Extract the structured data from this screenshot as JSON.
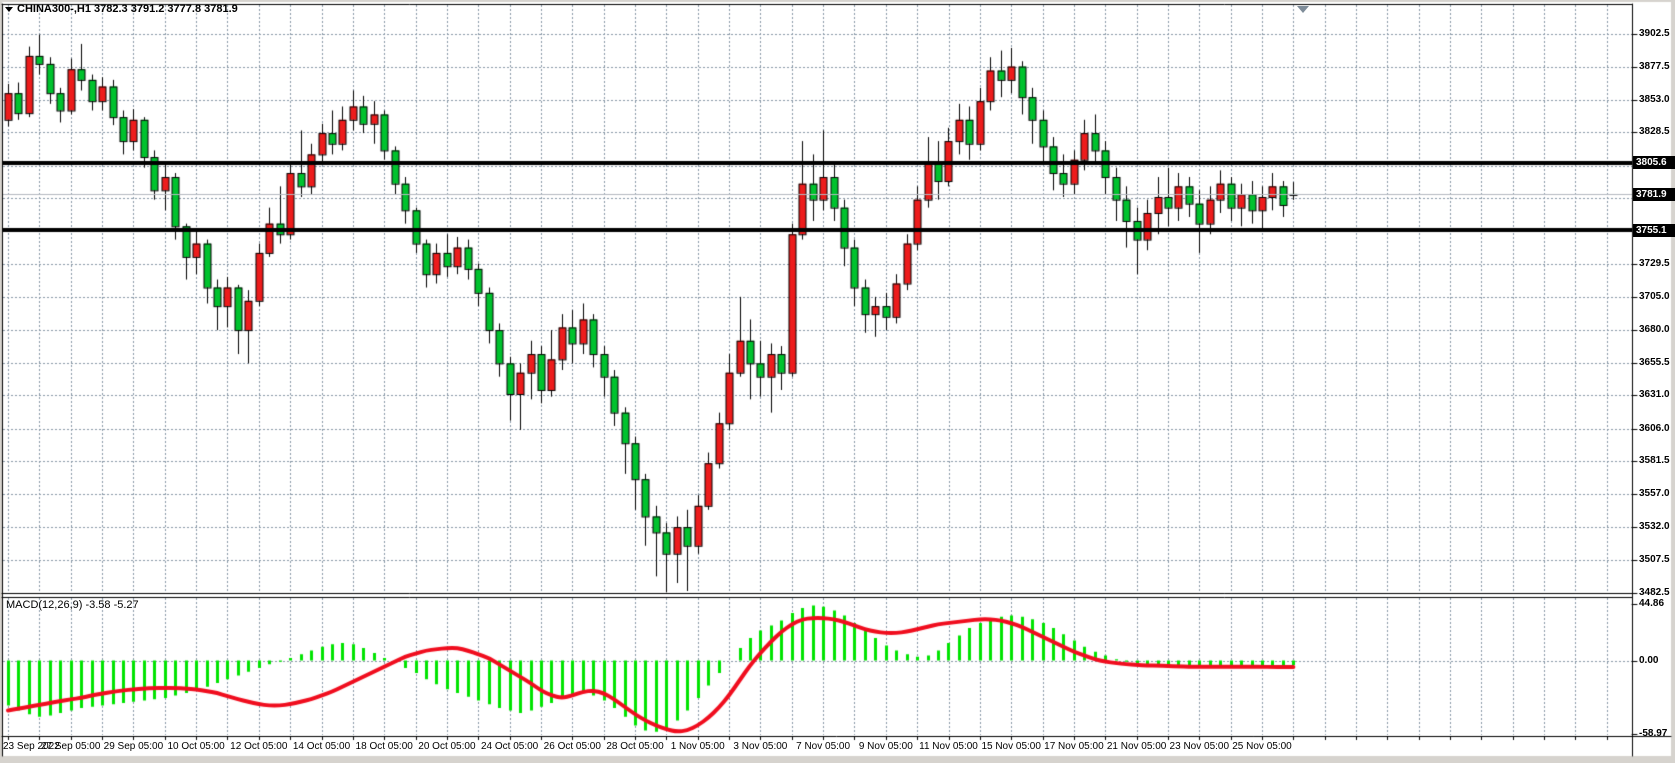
{
  "title": {
    "full": "CHINA300-,H1 3782.3 3791.2 3777.8 3781.9",
    "symbol_period": "CHINA300-,H1",
    "open": "3782.3",
    "high": "3791.2",
    "low": "3777.8",
    "close": "3781.9"
  },
  "macd": {
    "title": "MACD(12,26,9) -3.58 -5.27",
    "axis_labels": [
      {
        "text": "44.86",
        "value": 44.86
      },
      {
        "text": "0.00",
        "value": 0
      },
      {
        "text": "-58.97",
        "value": -58.97
      }
    ]
  },
  "price_axis": {
    "labels": [
      {
        "text": "3902.5",
        "price": 3902.5
      },
      {
        "text": "3877.5",
        "price": 3877.5
      },
      {
        "text": "3853.0",
        "price": 3853.0
      },
      {
        "text": "3828.5",
        "price": 3828.5
      },
      {
        "text": "3729.5",
        "price": 3729.5
      },
      {
        "text": "3705.0",
        "price": 3705.0
      },
      {
        "text": "3680.0",
        "price": 3680.0
      },
      {
        "text": "3655.5",
        "price": 3655.5
      },
      {
        "text": "3631.0",
        "price": 3631.0
      },
      {
        "text": "3606.0",
        "price": 3606.0
      },
      {
        "text": "3581.5",
        "price": 3581.5
      },
      {
        "text": "3557.0",
        "price": 3557.0
      },
      {
        "text": "3532.0",
        "price": 3532.0
      },
      {
        "text": "3507.5",
        "price": 3507.5
      },
      {
        "text": "3482.5",
        "price": 3482.5
      }
    ],
    "badges": [
      {
        "text": "3805.6",
        "price": 3805.6,
        "kind": "horizontal-line"
      },
      {
        "text": "3781.9",
        "price": 3781.9,
        "kind": "bid-price"
      },
      {
        "text": "3755.1",
        "price": 3755.1,
        "kind": "horizontal-line"
      }
    ]
  },
  "time_axis": {
    "labels": [
      {
        "text": "23 Sep 2022",
        "bar": 0
      },
      {
        "text": "27 Sep 05:00",
        "bar": 6
      },
      {
        "text": "29 Sep 05:00",
        "bar": 12
      },
      {
        "text": "10 Oct 05:00",
        "bar": 18
      },
      {
        "text": "12 Oct 05:00",
        "bar": 24
      },
      {
        "text": "14 Oct 05:00",
        "bar": 30
      },
      {
        "text": "18 Oct 05:00",
        "bar": 36
      },
      {
        "text": "20 Oct 05:00",
        "bar": 42
      },
      {
        "text": "24 Oct 05:00",
        "bar": 48
      },
      {
        "text": "26 Oct 05:00",
        "bar": 54
      },
      {
        "text": "28 Oct 05:00",
        "bar": 60
      },
      {
        "text": "1 Nov 05:00",
        "bar": 66
      },
      {
        "text": "3 Nov 05:00",
        "bar": 72
      },
      {
        "text": "7 Nov 05:00",
        "bar": 78
      },
      {
        "text": "9 Nov 05:00",
        "bar": 84
      },
      {
        "text": "11 Nov 05:00",
        "bar": 90
      },
      {
        "text": "15 Nov 05:00",
        "bar": 96
      },
      {
        "text": "17 Nov 05:00",
        "bar": 102
      },
      {
        "text": "21 Nov 05:00",
        "bar": 108
      },
      {
        "text": "23 Nov 05:00",
        "bar": 114
      },
      {
        "text": "25 Nov 05:00",
        "bar": 120
      }
    ]
  },
  "colors": {
    "bull": "#ed1c1c",
    "bear": "#00c22e",
    "candle_border": "#000000",
    "wick": "#000000",
    "macd_hist": "#00e400",
    "macd_signal": "#f00d1e",
    "grid": "#8696a6",
    "bid_line": "#b4b8c0",
    "hline": "#000000",
    "frame": "#d6d3ce",
    "panel": "#ffffff",
    "border": "#000000",
    "badge_bg": "#000000",
    "badge_text": "#ffffff"
  },
  "chart_data": {
    "type": "candlestick",
    "title": "CHINA300-,H1",
    "symbol": "CHINA300-",
    "timeframe": "H1",
    "ylim": [
      3482.5,
      3925.0
    ],
    "grid_prices": [
      3902.5,
      3877.5,
      3853.0,
      3828.5,
      3803.5,
      3779.5,
      3754.5,
      3729.5,
      3705.0,
      3680.0,
      3655.5,
      3631.0,
      3606.0,
      3581.5,
      3557.0,
      3532.0,
      3507.5,
      3482.5
    ],
    "hlines": [
      3805.6,
      3755.1
    ],
    "bid_price": 3781.9,
    "candles": [
      [
        3838,
        3865,
        3833,
        3858
      ],
      [
        3858,
        3866,
        3838,
        3843
      ],
      [
        3843,
        3893,
        3840,
        3886
      ],
      [
        3886,
        3902,
        3872,
        3880
      ],
      [
        3880,
        3885,
        3850,
        3858
      ],
      [
        3858,
        3862,
        3836,
        3845
      ],
      [
        3845,
        3884,
        3842,
        3876
      ],
      [
        3876,
        3895,
        3860,
        3868
      ],
      [
        3868,
        3872,
        3845,
        3852
      ],
      [
        3852,
        3870,
        3845,
        3863
      ],
      [
        3863,
        3868,
        3834,
        3840
      ],
      [
        3840,
        3845,
        3812,
        3822
      ],
      [
        3822,
        3846,
        3815,
        3838
      ],
      [
        3838,
        3840,
        3802,
        3810
      ],
      [
        3810,
        3815,
        3778,
        3785
      ],
      [
        3785,
        3805,
        3770,
        3795
      ],
      [
        3795,
        3798,
        3748,
        3758
      ],
      [
        3758,
        3760,
        3718,
        3735
      ],
      [
        3735,
        3755,
        3722,
        3745
      ],
      [
        3745,
        3748,
        3700,
        3712
      ],
      [
        3712,
        3718,
        3680,
        3698
      ],
      [
        3698,
        3720,
        3682,
        3712
      ],
      [
        3712,
        3714,
        3662,
        3680
      ],
      [
        3680,
        3710,
        3655,
        3702
      ],
      [
        3702,
        3745,
        3698,
        3738
      ],
      [
        3738,
        3772,
        3735,
        3760
      ],
      [
        3760,
        3788,
        3745,
        3752
      ],
      [
        3752,
        3806,
        3748,
        3798
      ],
      [
        3798,
        3830,
        3780,
        3788
      ],
      [
        3788,
        3820,
        3782,
        3812
      ],
      [
        3812,
        3835,
        3806,
        3828
      ],
      [
        3828,
        3845,
        3812,
        3820
      ],
      [
        3820,
        3848,
        3815,
        3838
      ],
      [
        3838,
        3860,
        3830,
        3848
      ],
      [
        3848,
        3856,
        3828,
        3835
      ],
      [
        3835,
        3852,
        3820,
        3842
      ],
      [
        3842,
        3845,
        3808,
        3815
      ],
      [
        3815,
        3818,
        3782,
        3790
      ],
      [
        3790,
        3795,
        3760,
        3770
      ],
      [
        3770,
        3772,
        3738,
        3745
      ],
      [
        3745,
        3748,
        3712,
        3722
      ],
      [
        3722,
        3745,
        3715,
        3738
      ],
      [
        3738,
        3752,
        3720,
        3728
      ],
      [
        3728,
        3750,
        3722,
        3742
      ],
      [
        3742,
        3748,
        3718,
        3726
      ],
      [
        3726,
        3730,
        3698,
        3708
      ],
      [
        3708,
        3712,
        3670,
        3680
      ],
      [
        3680,
        3685,
        3645,
        3655
      ],
      [
        3655,
        3660,
        3612,
        3632
      ],
      [
        3632,
        3655,
        3605,
        3648
      ],
      [
        3648,
        3672,
        3628,
        3662
      ],
      [
        3662,
        3668,
        3625,
        3635
      ],
      [
        3635,
        3680,
        3630,
        3658
      ],
      [
        3658,
        3692,
        3650,
        3682
      ],
      [
        3682,
        3695,
        3655,
        3670
      ],
      [
        3670,
        3700,
        3662,
        3688
      ],
      [
        3688,
        3692,
        3652,
        3662
      ],
      [
        3662,
        3668,
        3630,
        3645
      ],
      [
        3645,
        3650,
        3608,
        3618
      ],
      [
        3618,
        3622,
        3572,
        3595
      ],
      [
        3595,
        3600,
        3545,
        3568
      ],
      [
        3568,
        3572,
        3518,
        3540
      ],
      [
        3540,
        3548,
        3495,
        3528
      ],
      [
        3528,
        3535,
        3483,
        3512
      ],
      [
        3512,
        3540,
        3490,
        3532
      ],
      [
        3532,
        3545,
        3484,
        3518
      ],
      [
        3518,
        3556,
        3512,
        3548
      ],
      [
        3548,
        3588,
        3545,
        3580
      ],
      [
        3580,
        3618,
        3576,
        3610
      ],
      [
        3610,
        3662,
        3605,
        3648
      ],
      [
        3648,
        3705,
        3645,
        3672
      ],
      [
        3672,
        3688,
        3628,
        3655
      ],
      [
        3655,
        3672,
        3630,
        3645
      ],
      [
        3645,
        3670,
        3618,
        3662
      ],
      [
        3662,
        3668,
        3635,
        3648
      ],
      [
        3648,
        3760,
        3645,
        3752
      ],
      [
        3752,
        3822,
        3748,
        3790
      ],
      [
        3790,
        3812,
        3762,
        3778
      ],
      [
        3778,
        3830,
        3770,
        3795
      ],
      [
        3795,
        3805,
        3762,
        3772
      ],
      [
        3772,
        3778,
        3728,
        3742
      ],
      [
        3742,
        3748,
        3698,
        3712
      ],
      [
        3712,
        3718,
        3678,
        3692
      ],
      [
        3692,
        3705,
        3675,
        3698
      ],
      [
        3698,
        3708,
        3680,
        3690
      ],
      [
        3690,
        3722,
        3685,
        3715
      ],
      [
        3715,
        3752,
        3710,
        3745
      ],
      [
        3745,
        3788,
        3740,
        3778
      ],
      [
        3778,
        3825,
        3772,
        3805
      ],
      [
        3805,
        3822,
        3778,
        3792
      ],
      [
        3792,
        3832,
        3788,
        3822
      ],
      [
        3822,
        3850,
        3812,
        3838
      ],
      [
        3838,
        3848,
        3808,
        3820
      ],
      [
        3820,
        3862,
        3815,
        3852
      ],
      [
        3852,
        3885,
        3845,
        3875
      ],
      [
        3875,
        3890,
        3855,
        3868
      ],
      [
        3868,
        3892,
        3858,
        3878
      ],
      [
        3878,
        3882,
        3842,
        3855
      ],
      [
        3855,
        3862,
        3820,
        3838
      ],
      [
        3838,
        3845,
        3805,
        3818
      ],
      [
        3818,
        3825,
        3785,
        3798
      ],
      [
        3798,
        3812,
        3780,
        3790
      ],
      [
        3790,
        3815,
        3782,
        3808
      ],
      [
        3808,
        3838,
        3800,
        3828
      ],
      [
        3828,
        3842,
        3805,
        3815
      ],
      [
        3815,
        3822,
        3782,
        3795
      ],
      [
        3795,
        3802,
        3762,
        3778
      ],
      [
        3778,
        3788,
        3742,
        3762
      ],
      [
        3762,
        3772,
        3722,
        3748
      ],
      [
        3748,
        3778,
        3740,
        3768
      ],
      [
        3768,
        3795,
        3752,
        3780
      ],
      [
        3780,
        3802,
        3758,
        3772
      ],
      [
        3772,
        3798,
        3762,
        3788
      ],
      [
        3788,
        3795,
        3765,
        3775
      ],
      [
        3775,
        3785,
        3738,
        3760
      ],
      [
        3760,
        3788,
        3752,
        3778
      ],
      [
        3778,
        3800,
        3768,
        3790
      ],
      [
        3790,
        3795,
        3762,
        3772
      ],
      [
        3772,
        3790,
        3758,
        3782
      ],
      [
        3782,
        3792,
        3760,
        3770
      ],
      [
        3770,
        3788,
        3755,
        3780
      ],
      [
        3780,
        3798,
        3770,
        3788
      ],
      [
        3788,
        3792,
        3765,
        3774
      ],
      [
        3782.3,
        3791.2,
        3777.8,
        3781.9
      ]
    ],
    "macd": {
      "params": [
        12,
        26,
        9
      ],
      "last_hist": -3.58,
      "last_signal": -5.27,
      "ylim": [
        -59.6,
        50.0
      ],
      "histogram": [
        -36,
        -40,
        -43,
        -45,
        -44,
        -42,
        -40,
        -38,
        -37,
        -36,
        -35,
        -34,
        -33,
        -32,
        -31,
        -30,
        -28,
        -26,
        -24,
        -21,
        -18,
        -15,
        -12,
        -9,
        -6,
        -3,
        -1,
        2,
        5,
        8,
        11,
        13,
        14,
        13,
        10,
        6,
        2,
        -2,
        -6,
        -10,
        -15,
        -19,
        -23,
        -26,
        -29,
        -32,
        -35,
        -38,
        -40,
        -42,
        -40,
        -37,
        -34,
        -30,
        -27,
        -25,
        -28,
        -32,
        -38,
        -45,
        -52,
        -56,
        -57,
        -54,
        -48,
        -40,
        -30,
        -20,
        -10,
        0,
        10,
        18,
        24,
        28,
        32,
        38,
        42,
        44,
        43,
        40,
        36,
        30,
        24,
        18,
        12,
        8,
        5,
        3,
        4,
        8,
        14,
        20,
        26,
        30,
        33,
        35,
        36,
        35,
        33,
        30,
        26,
        21,
        16,
        11,
        7,
        4,
        1,
        -1,
        -2,
        -3,
        -4,
        -5,
        -5,
        -6,
        -6,
        -5,
        -5,
        -4,
        -4,
        -4,
        -4,
        -4,
        -3.8,
        -3.58
      ],
      "signal": [
        -40,
        -38.5,
        -37,
        -35.5,
        -34,
        -32.5,
        -31,
        -30,
        -28,
        -26.5,
        -25,
        -24,
        -23,
        -22.5,
        -22,
        -22,
        -22,
        -22.5,
        -23,
        -24.5,
        -26,
        -28.5,
        -31,
        -33,
        -35,
        -36,
        -36,
        -35,
        -33,
        -31,
        -28,
        -25,
        -21,
        -17,
        -13,
        -9,
        -5,
        -1,
        3,
        5.5,
        8,
        9,
        10,
        10,
        8,
        5,
        2,
        -3,
        -8,
        -13,
        -18,
        -24,
        -28,
        -30,
        -28,
        -25,
        -24,
        -26,
        -31,
        -37,
        -43,
        -48,
        -52,
        -55,
        -57,
        -56,
        -52,
        -46,
        -38,
        -28,
        -16,
        -4,
        6,
        15,
        23,
        29,
        33,
        34,
        34,
        33,
        31,
        28,
        25,
        23,
        22,
        22,
        23,
        25,
        27,
        29,
        30,
        31,
        32,
        33,
        33,
        32,
        30,
        27,
        23,
        19,
        15,
        11,
        7,
        4,
        1,
        -1,
        -2,
        -3,
        -3.5,
        -4,
        -4,
        -4.5,
        -4.5,
        -5,
        -5,
        -5,
        -5,
        -5,
        -5,
        -5,
        -5,
        -5.2,
        -5.2,
        -5.27
      ]
    }
  }
}
